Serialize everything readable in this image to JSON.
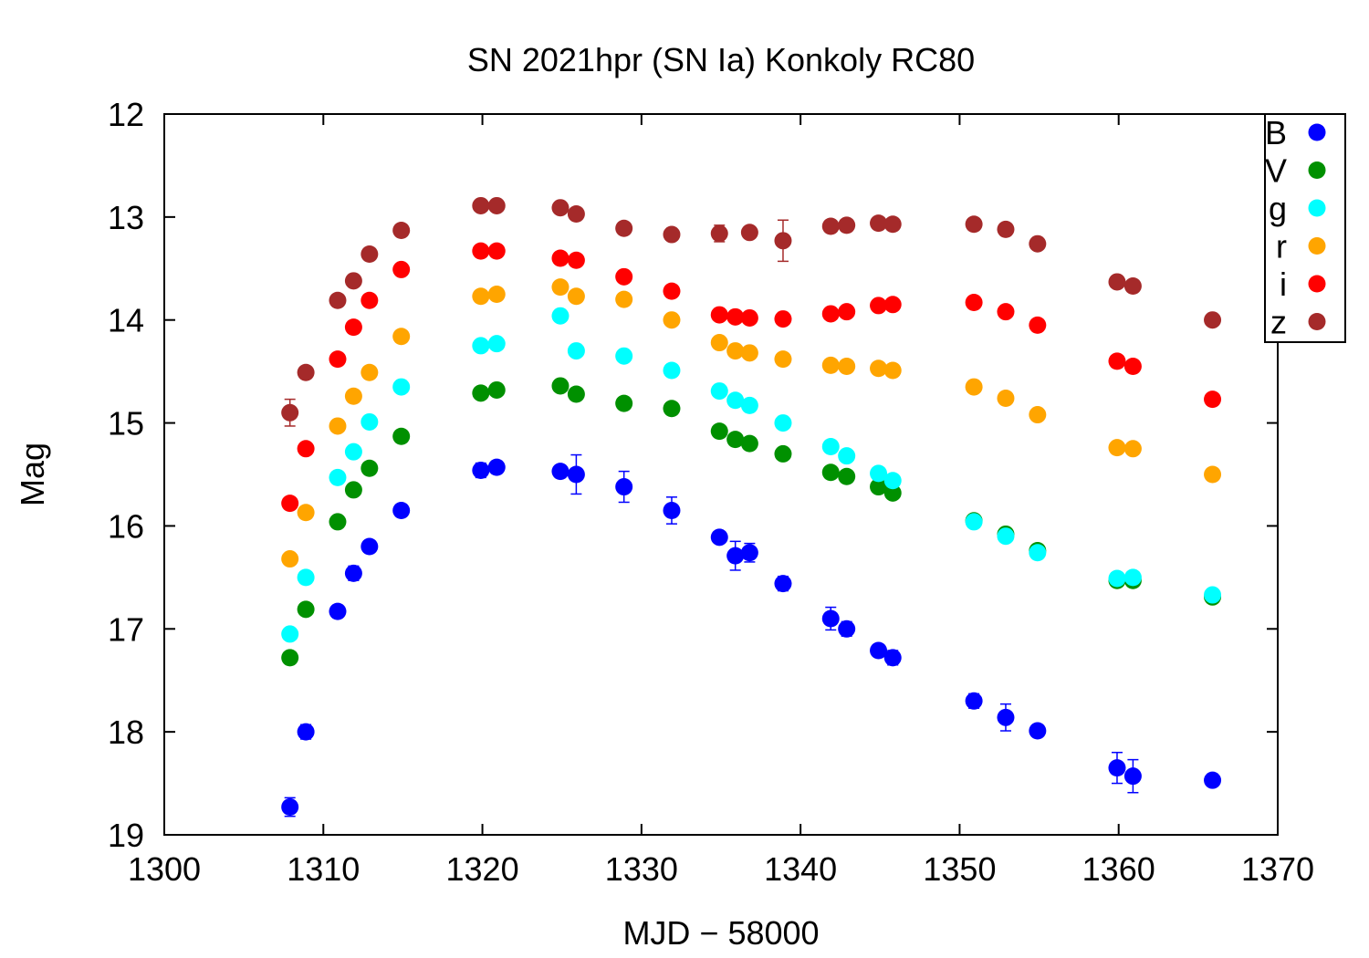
{
  "chart_data": {
    "type": "scatter",
    "title": "SN 2021hpr (SN Ia) Konkoly RC80",
    "xlabel": "MJD − 58000",
    "ylabel": "Mag",
    "xlim": [
      1300,
      1370
    ],
    "ylim": [
      19,
      12
    ],
    "y_inverted": true,
    "xticks": [
      1300,
      1310,
      1320,
      1330,
      1340,
      1350,
      1360,
      1370
    ],
    "yticks": [
      12,
      13,
      14,
      15,
      16,
      17,
      18,
      19
    ],
    "grid": false,
    "legend_position": "top-right",
    "series": [
      {
        "name": "B",
        "color": "#0000ff",
        "points": [
          {
            "x": 1307.9,
            "y": 18.73,
            "err": 0.09
          },
          {
            "x": 1308.9,
            "y": 18.0,
            "err": 0.07
          },
          {
            "x": 1310.9,
            "y": 16.83,
            "err": 0.06
          },
          {
            "x": 1311.9,
            "y": 16.46,
            "err": 0.07
          },
          {
            "x": 1312.9,
            "y": 16.2,
            "err": 0.05
          },
          {
            "x": 1314.9,
            "y": 15.85,
            "err": 0.06
          },
          {
            "x": 1319.9,
            "y": 15.46,
            "err": 0.07
          },
          {
            "x": 1320.9,
            "y": 15.43,
            "err": 0.06
          },
          {
            "x": 1324.9,
            "y": 15.47,
            "err": 0.06
          },
          {
            "x": 1325.9,
            "y": 15.5,
            "err": 0.19
          },
          {
            "x": 1328.9,
            "y": 15.62,
            "err": 0.15
          },
          {
            "x": 1331.9,
            "y": 15.85,
            "err": 0.13
          },
          {
            "x": 1334.9,
            "y": 16.11,
            "err": 0.05
          },
          {
            "x": 1335.9,
            "y": 16.29,
            "err": 0.14
          },
          {
            "x": 1336.8,
            "y": 16.26,
            "err": 0.09
          },
          {
            "x": 1338.9,
            "y": 16.56,
            "err": 0.07
          },
          {
            "x": 1341.9,
            "y": 16.9,
            "err": 0.11
          },
          {
            "x": 1342.9,
            "y": 17.0,
            "err": 0.07
          },
          {
            "x": 1344.9,
            "y": 17.21,
            "err": 0.05
          },
          {
            "x": 1345.8,
            "y": 17.28,
            "err": 0.07
          },
          {
            "x": 1350.9,
            "y": 17.7,
            "err": 0.07
          },
          {
            "x": 1352.9,
            "y": 17.86,
            "err": 0.13
          },
          {
            "x": 1354.9,
            "y": 17.99,
            "err": 0.05
          },
          {
            "x": 1359.9,
            "y": 18.35,
            "err": 0.15
          },
          {
            "x": 1360.9,
            "y": 18.43,
            "err": 0.16
          },
          {
            "x": 1365.9,
            "y": 18.47,
            "err": 0.06
          }
        ]
      },
      {
        "name": "V",
        "color": "#009000",
        "points": [
          {
            "x": 1307.9,
            "y": 17.28
          },
          {
            "x": 1308.9,
            "y": 16.81
          },
          {
            "x": 1310.9,
            "y": 15.96
          },
          {
            "x": 1311.9,
            "y": 15.65
          },
          {
            "x": 1312.9,
            "y": 15.44
          },
          {
            "x": 1314.9,
            "y": 15.13
          },
          {
            "x": 1319.9,
            "y": 14.71
          },
          {
            "x": 1320.9,
            "y": 14.68
          },
          {
            "x": 1324.9,
            "y": 14.64
          },
          {
            "x": 1325.9,
            "y": 14.72
          },
          {
            "x": 1328.9,
            "y": 14.81
          },
          {
            "x": 1331.9,
            "y": 14.86
          },
          {
            "x": 1334.9,
            "y": 15.08
          },
          {
            "x": 1335.9,
            "y": 15.16
          },
          {
            "x": 1336.8,
            "y": 15.2
          },
          {
            "x": 1338.9,
            "y": 15.3
          },
          {
            "x": 1341.9,
            "y": 15.48
          },
          {
            "x": 1342.9,
            "y": 15.52
          },
          {
            "x": 1344.9,
            "y": 15.62
          },
          {
            "x": 1345.8,
            "y": 15.68
          },
          {
            "x": 1350.9,
            "y": 15.95
          },
          {
            "x": 1352.9,
            "y": 16.08
          },
          {
            "x": 1354.9,
            "y": 16.24
          },
          {
            "x": 1359.9,
            "y": 16.53
          },
          {
            "x": 1360.9,
            "y": 16.53
          },
          {
            "x": 1365.9,
            "y": 16.69
          }
        ]
      },
      {
        "name": "g",
        "color": "#00ffff",
        "points": [
          {
            "x": 1307.9,
            "y": 17.05
          },
          {
            "x": 1308.9,
            "y": 16.5
          },
          {
            "x": 1310.9,
            "y": 15.53
          },
          {
            "x": 1311.9,
            "y": 15.28
          },
          {
            "x": 1312.9,
            "y": 14.99
          },
          {
            "x": 1314.9,
            "y": 14.65
          },
          {
            "x": 1319.9,
            "y": 14.25
          },
          {
            "x": 1320.9,
            "y": 14.23
          },
          {
            "x": 1324.9,
            "y": 13.96
          },
          {
            "x": 1325.9,
            "y": 14.3
          },
          {
            "x": 1328.9,
            "y": 14.35
          },
          {
            "x": 1331.9,
            "y": 14.49
          },
          {
            "x": 1334.9,
            "y": 14.69
          },
          {
            "x": 1335.9,
            "y": 14.78
          },
          {
            "x": 1336.8,
            "y": 14.83
          },
          {
            "x": 1338.9,
            "y": 15.0
          },
          {
            "x": 1341.9,
            "y": 15.23
          },
          {
            "x": 1342.9,
            "y": 15.32
          },
          {
            "x": 1344.9,
            "y": 15.49
          },
          {
            "x": 1345.8,
            "y": 15.56
          },
          {
            "x": 1350.9,
            "y": 15.96
          },
          {
            "x": 1352.9,
            "y": 16.1
          },
          {
            "x": 1354.9,
            "y": 16.26
          },
          {
            "x": 1359.9,
            "y": 16.51
          },
          {
            "x": 1360.9,
            "y": 16.5
          },
          {
            "x": 1365.9,
            "y": 16.67
          }
        ]
      },
      {
        "name": "r",
        "color": "#ffa500",
        "points": [
          {
            "x": 1307.9,
            "y": 16.32
          },
          {
            "x": 1308.9,
            "y": 15.87
          },
          {
            "x": 1310.9,
            "y": 15.03
          },
          {
            "x": 1311.9,
            "y": 14.74
          },
          {
            "x": 1312.9,
            "y": 14.51
          },
          {
            "x": 1314.9,
            "y": 14.16
          },
          {
            "x": 1319.9,
            "y": 13.77
          },
          {
            "x": 1320.9,
            "y": 13.75
          },
          {
            "x": 1324.9,
            "y": 13.68
          },
          {
            "x": 1325.9,
            "y": 13.77
          },
          {
            "x": 1328.9,
            "y": 13.8
          },
          {
            "x": 1331.9,
            "y": 14.0
          },
          {
            "x": 1334.9,
            "y": 14.22
          },
          {
            "x": 1335.9,
            "y": 14.3
          },
          {
            "x": 1336.8,
            "y": 14.32
          },
          {
            "x": 1338.9,
            "y": 14.38
          },
          {
            "x": 1341.9,
            "y": 14.44
          },
          {
            "x": 1342.9,
            "y": 14.45
          },
          {
            "x": 1344.9,
            "y": 14.47
          },
          {
            "x": 1345.8,
            "y": 14.49
          },
          {
            "x": 1350.9,
            "y": 14.65
          },
          {
            "x": 1352.9,
            "y": 14.76
          },
          {
            "x": 1354.9,
            "y": 14.92
          },
          {
            "x": 1359.9,
            "y": 15.24
          },
          {
            "x": 1360.9,
            "y": 15.25
          },
          {
            "x": 1365.9,
            "y": 15.5
          }
        ]
      },
      {
        "name": "i",
        "color": "#ff0000",
        "points": [
          {
            "x": 1307.9,
            "y": 15.78
          },
          {
            "x": 1308.9,
            "y": 15.25
          },
          {
            "x": 1310.9,
            "y": 14.38
          },
          {
            "x": 1311.9,
            "y": 14.07
          },
          {
            "x": 1312.9,
            "y": 13.81
          },
          {
            "x": 1314.9,
            "y": 13.51
          },
          {
            "x": 1319.9,
            "y": 13.33
          },
          {
            "x": 1320.9,
            "y": 13.33
          },
          {
            "x": 1324.9,
            "y": 13.4
          },
          {
            "x": 1325.9,
            "y": 13.42
          },
          {
            "x": 1328.9,
            "y": 13.58
          },
          {
            "x": 1331.9,
            "y": 13.72
          },
          {
            "x": 1334.9,
            "y": 13.95
          },
          {
            "x": 1335.9,
            "y": 13.97
          },
          {
            "x": 1336.8,
            "y": 13.98
          },
          {
            "x": 1338.9,
            "y": 13.99
          },
          {
            "x": 1341.9,
            "y": 13.94
          },
          {
            "x": 1342.9,
            "y": 13.92
          },
          {
            "x": 1344.9,
            "y": 13.86
          },
          {
            "x": 1345.8,
            "y": 13.85
          },
          {
            "x": 1350.9,
            "y": 13.83
          },
          {
            "x": 1352.9,
            "y": 13.92
          },
          {
            "x": 1354.9,
            "y": 14.05
          },
          {
            "x": 1359.9,
            "y": 14.4
          },
          {
            "x": 1360.9,
            "y": 14.45
          },
          {
            "x": 1365.9,
            "y": 14.77
          }
        ]
      },
      {
        "name": "z",
        "color": "#a52a2a",
        "points": [
          {
            "x": 1307.9,
            "y": 14.9,
            "err": 0.13
          },
          {
            "x": 1308.9,
            "y": 14.51
          },
          {
            "x": 1310.9,
            "y": 13.81
          },
          {
            "x": 1311.9,
            "y": 13.62
          },
          {
            "x": 1312.9,
            "y": 13.36
          },
          {
            "x": 1314.9,
            "y": 13.13
          },
          {
            "x": 1319.9,
            "y": 12.89
          },
          {
            "x": 1320.9,
            "y": 12.89
          },
          {
            "x": 1324.9,
            "y": 12.91
          },
          {
            "x": 1325.9,
            "y": 12.97
          },
          {
            "x": 1328.9,
            "y": 13.11
          },
          {
            "x": 1331.9,
            "y": 13.17
          },
          {
            "x": 1334.9,
            "y": 13.16,
            "err": 0.08
          },
          {
            "x": 1336.8,
            "y": 13.15
          },
          {
            "x": 1338.9,
            "y": 13.23,
            "err": 0.2
          },
          {
            "x": 1341.9,
            "y": 13.09
          },
          {
            "x": 1342.9,
            "y": 13.08
          },
          {
            "x": 1344.9,
            "y": 13.06
          },
          {
            "x": 1345.8,
            "y": 13.07
          },
          {
            "x": 1350.9,
            "y": 13.07
          },
          {
            "x": 1352.9,
            "y": 13.12
          },
          {
            "x": 1354.9,
            "y": 13.26
          },
          {
            "x": 1359.9,
            "y": 13.63
          },
          {
            "x": 1360.9,
            "y": 13.67
          },
          {
            "x": 1365.9,
            "y": 14.0
          }
        ]
      }
    ]
  }
}
